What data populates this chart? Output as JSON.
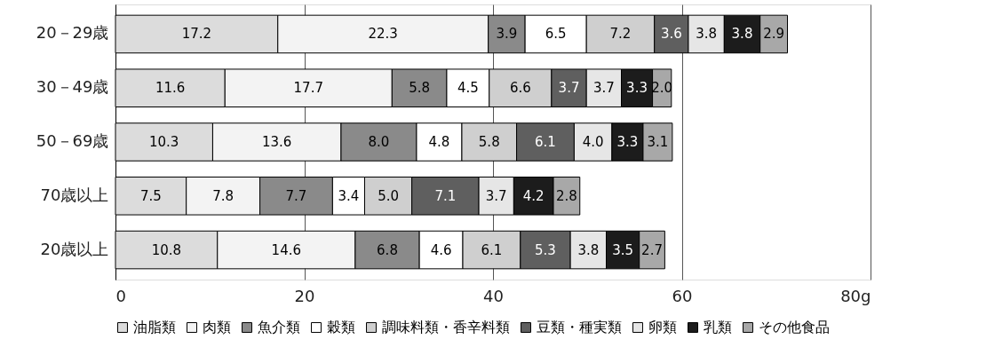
{
  "chart_data": {
    "type": "bar",
    "orientation": "horizontal",
    "stacked": true,
    "grid": "x",
    "legend": "bottom",
    "categories": [
      "20－29歳",
      "30－49歳",
      "50－69歳",
      "70歳以上",
      "20歳以上"
    ],
    "xlim": [
      0,
      80
    ],
    "xticks": [
      0,
      20,
      40,
      60,
      {
        "value": 80,
        "label": "80g"
      }
    ],
    "series": [
      {
        "name": "油脂類",
        "color": "#dcdcdc",
        "values": [
          17.2,
          11.6,
          10.3,
          7.5,
          10.8
        ],
        "value_labels": [
          "17.2",
          "11.6",
          "10.3",
          "7.5",
          "10.8"
        ]
      },
      {
        "name": "肉類",
        "color": "#f3f3f3",
        "values": [
          22.3,
          17.7,
          13.6,
          7.8,
          14.6
        ],
        "value_labels": [
          "22.3",
          "17.7",
          "13.6",
          "7.8",
          "14.6"
        ]
      },
      {
        "name": "魚介類",
        "color": "#8a8a8a",
        "values": [
          3.9,
          5.8,
          8.0,
          7.7,
          6.8
        ],
        "value_labels": [
          "3.9",
          "5.8",
          "8.0",
          "7.7",
          "6.8"
        ]
      },
      {
        "name": "穀類",
        "color": "#ffffff",
        "values": [
          6.5,
          4.5,
          4.8,
          3.4,
          4.6
        ],
        "value_labels": [
          "6.5",
          "4.5",
          "4.8",
          "3.4",
          "4.6"
        ]
      },
      {
        "name": "調味料類・香辛料類",
        "color": "#cfcfcf",
        "values": [
          7.2,
          6.6,
          5.8,
          5.0,
          6.1
        ],
        "value_labels": [
          "7.2",
          "6.6",
          "5.8",
          "5.0",
          "6.1"
        ]
      },
      {
        "name": "豆類・種実類",
        "color": "#5f5f5f",
        "values": [
          3.6,
          3.7,
          6.1,
          7.1,
          5.3
        ],
        "value_labels": [
          "3.6",
          "3.7",
          "6.1",
          "7.1",
          "5.3"
        ]
      },
      {
        "name": "卵類",
        "color": "#e6e6e6",
        "values": [
          3.8,
          3.7,
          4.0,
          3.7,
          3.8
        ],
        "value_labels": [
          "3.8",
          "3.7",
          "4.0",
          "3.7",
          "3.8"
        ]
      },
      {
        "name": "乳類",
        "color": "#1c1c1c",
        "values": [
          3.8,
          3.3,
          3.3,
          4.2,
          3.5
        ],
        "value_labels": [
          "3.8",
          "3.3",
          "3.3",
          "4.2",
          "3.5"
        ]
      },
      {
        "name": "その他食品",
        "color": "#a8a8a8",
        "values": [
          2.9,
          2.0,
          3.1,
          2.8,
          2.7
        ],
        "value_labels": [
          "2.9",
          "2.0",
          "3.1",
          "2.8",
          "2.7"
        ]
      }
    ]
  }
}
